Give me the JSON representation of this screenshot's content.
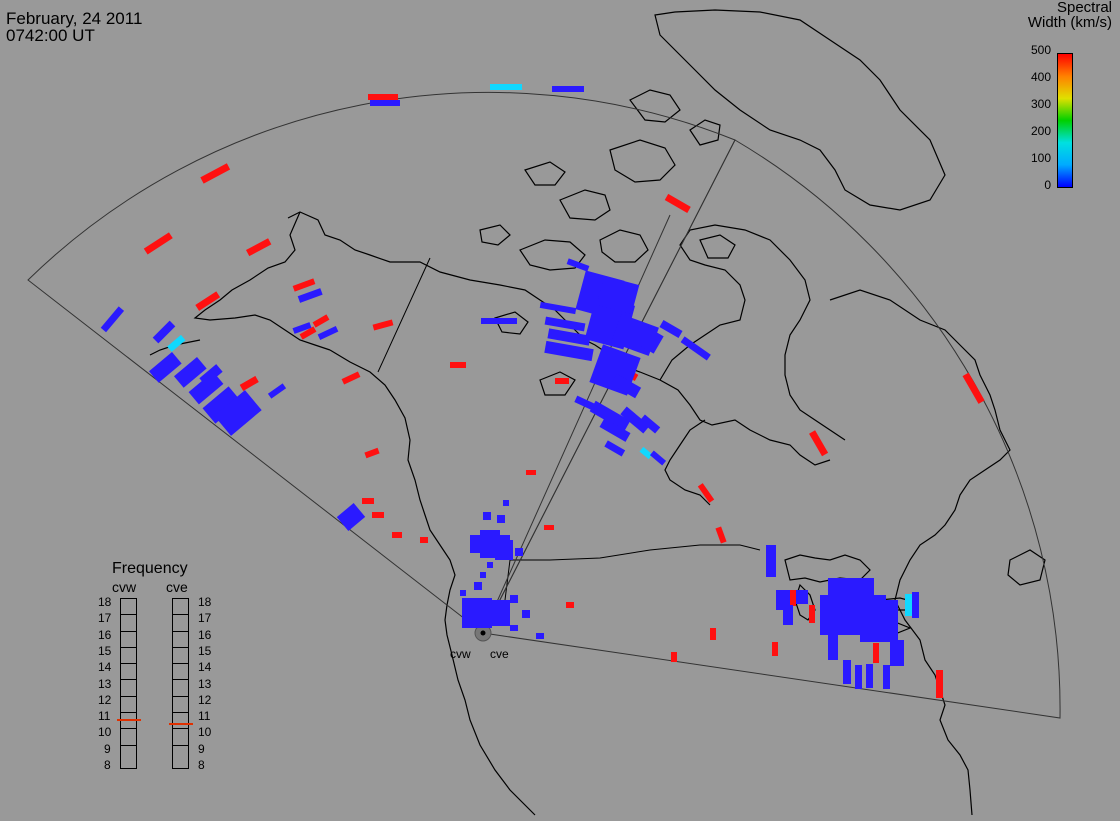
{
  "header": {
    "date": "February, 24 2011",
    "time": "0742:00 UT"
  },
  "legend": {
    "title_line1": "Spectral",
    "title_line2": "Width (km/s)",
    "ticks": [
      "500",
      "400",
      "300",
      "200",
      "100",
      "0"
    ],
    "colors": [
      "#0000ff",
      "#00aaff",
      "#00e0e0",
      "#00d000",
      "#e0e000",
      "#ff8000",
      "#ff0000"
    ]
  },
  "frequency": {
    "title": "Frequency",
    "sites": [
      "cvw",
      "cve"
    ],
    "levels": [
      "18",
      "17",
      "16",
      "15",
      "14",
      "13",
      "12",
      "11",
      "10",
      "9",
      "8"
    ],
    "current_mhz": {
      "cvw": 10.8,
      "cve": 10.6
    }
  },
  "radar_sites": [
    "cvw",
    "cve"
  ],
  "colors": {
    "background": "#999999",
    "coast": "#000000",
    "fov": "#333333",
    "blue": "#2a1aff",
    "red": "#ff1010",
    "cyan": "#10d8ff"
  }
}
